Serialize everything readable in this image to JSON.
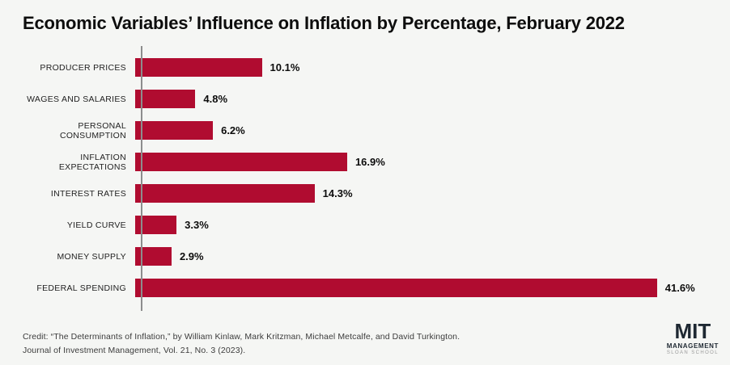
{
  "title": "Economic Variables’ Influence on Inflation by Percentage, February 2022",
  "chart_data": {
    "type": "bar",
    "orientation": "horizontal",
    "title": "Economic Variables’ Influence on Inflation by Percentage, February 2022",
    "categories": [
      "PRODUCER PRICES",
      "WAGES AND SALARIES",
      "PERSONAL CONSUMPTION",
      "INFLATION EXPECTATIONS",
      "INTEREST RATES",
      "YIELD CURVE",
      "MONEY SUPPLY",
      "FEDERAL SPENDING"
    ],
    "values": [
      10.1,
      4.8,
      6.2,
      16.9,
      14.3,
      3.3,
      2.9,
      41.6
    ],
    "value_labels": [
      "10.1%",
      "4.8%",
      "6.2%",
      "16.9%",
      "14.3%",
      "3.3%",
      "2.9%",
      "41.6%"
    ],
    "xlabel": "",
    "ylabel": "",
    "xlim": [
      0,
      45
    ],
    "grid": false,
    "legend": null,
    "bar_color": "#B00C30"
  },
  "credit": {
    "line1": "Credit: “The Determinants of Inflation,” by William Kinlaw, Mark Kritzman, Michael Metcalfe, and David Turkington.",
    "line2": "Journal of Investment Management, Vol. 21, No. 3 (2023)."
  },
  "logo": {
    "mit": "MIT",
    "management": "MANAGEMENT",
    "school": "SLOAN SCHOOL"
  },
  "colors": {
    "bar": "#B00C30",
    "background": "#f5f6f4",
    "axis": "#8d8d8d",
    "title_text": "#0d0d0d",
    "credit_text": "#3c3c3c",
    "logo_text": "#1e2832"
  }
}
